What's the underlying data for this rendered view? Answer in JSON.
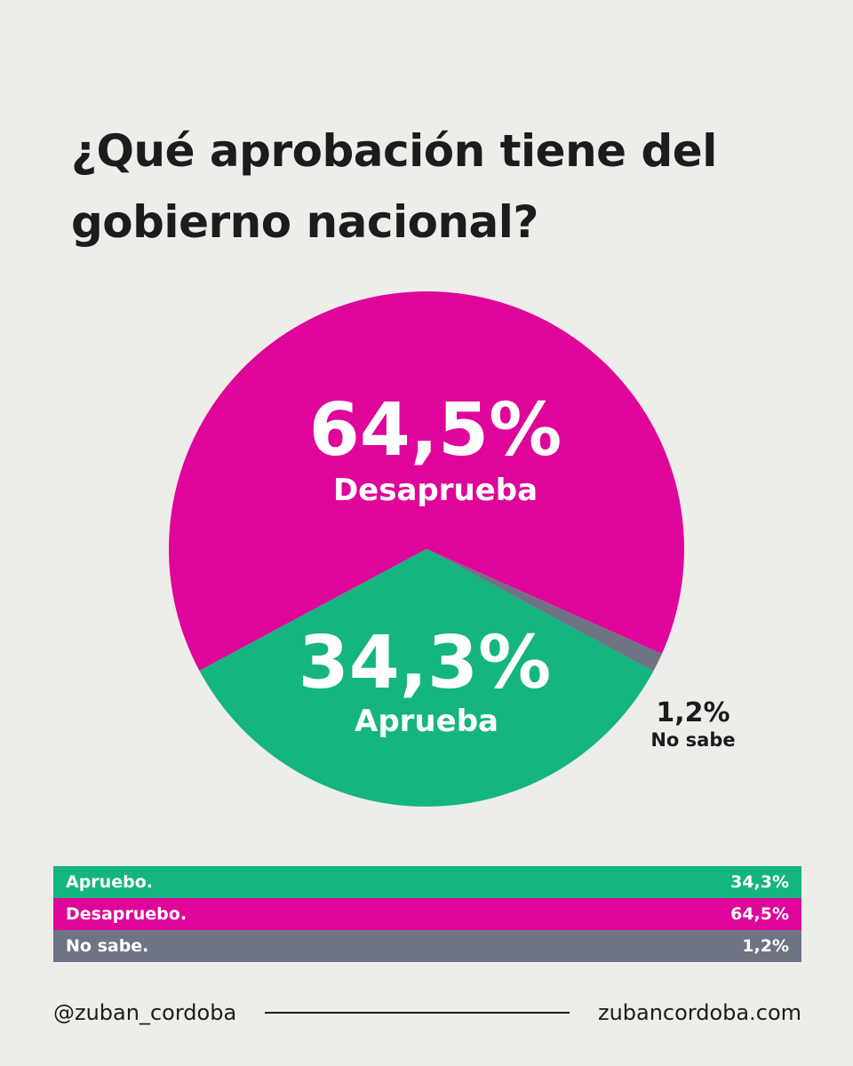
{
  "title": "¿Qué aprobación tiene del gobierno nacional?",
  "chart_data": {
    "type": "pie",
    "title": "¿Qué aprobación tiene del gobierno nacional?",
    "slices": [
      {
        "label": "Desaprueba",
        "value": 64.5,
        "value_label": "64,5%",
        "color": "#e0059a"
      },
      {
        "label": "Aprueba",
        "value": 34.3,
        "value_label": "34,3%",
        "color": "#14b57f"
      },
      {
        "label": "No sabe",
        "value": 1.2,
        "value_label": "1,2%",
        "color": "#6e7484"
      }
    ]
  },
  "table": {
    "rows": [
      {
        "label": "Apruebo.",
        "value": "34,3%",
        "color": "#14b57f"
      },
      {
        "label": "Desapruebo.",
        "value": "64,5%",
        "color": "#e0059a"
      },
      {
        "label": "No sabe.",
        "value": "1,2%",
        "color": "#6e7484"
      }
    ]
  },
  "footer": {
    "handle": "@zuban_cordoba",
    "website": "zubancordoba.com"
  }
}
